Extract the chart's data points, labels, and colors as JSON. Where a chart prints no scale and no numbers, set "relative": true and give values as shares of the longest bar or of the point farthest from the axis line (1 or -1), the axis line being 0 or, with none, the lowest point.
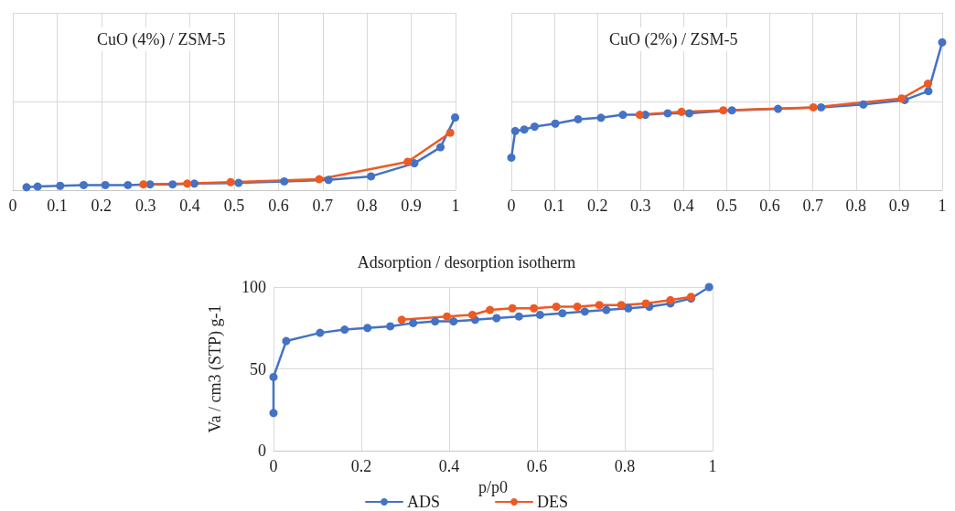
{
  "chart_data": [
    {
      "type": "line",
      "title": "CuO (4%) / ZSM-5",
      "relative": true,
      "tick_labels": "x",
      "grid": true,
      "marker": "circle",
      "line_style": "solid",
      "xlim": [
        0,
        1
      ],
      "xticks": [
        0,
        0.1,
        0.2,
        0.3,
        0.4,
        0.5,
        0.6,
        0.7,
        0.8,
        0.9,
        1
      ],
      "series": [
        {
          "color": "#4472c4",
          "x": [
            0.031,
            0.056,
            0.107,
            0.16,
            0.209,
            0.26,
            0.31,
            0.361,
            0.41,
            0.51,
            0.613,
            0.713,
            0.809,
            0.907,
            0.966,
            0.999
          ],
          "values": [
            0.04,
            0.05,
            0.06,
            0.07,
            0.07,
            0.07,
            0.08,
            0.08,
            0.09,
            0.1,
            0.12,
            0.14,
            0.19,
            0.37,
            0.59,
            1
          ]
        },
        {
          "color": "#ed5a23",
          "x": [
            0.295,
            0.394,
            0.492,
            0.692,
            0.892,
            0.988
          ],
          "values": [
            0.08,
            0.09,
            0.11,
            0.15,
            0.39,
            0.79
          ]
        }
      ]
    },
    {
      "type": "line",
      "title": "CuO (2%) / ZSM-5",
      "relative": true,
      "tick_labels": "x",
      "grid": true,
      "marker": "circle",
      "line_style": "solid",
      "xlim": [
        0,
        1
      ],
      "xticks": [
        0,
        0.1,
        0.2,
        0.3,
        0.4,
        0.5,
        0.6,
        0.7,
        0.8,
        0.9,
        1
      ],
      "series": [
        {
          "color": "#4472c4",
          "x": [
            0,
            0.009,
            0.03,
            0.054,
            0.102,
            0.155,
            0.208,
            0.259,
            0.311,
            0.363,
            0.413,
            0.512,
            0.619,
            0.719,
            0.817,
            0.913,
            0.968,
            1
          ],
          "values": [
            0.22,
            0.4,
            0.41,
            0.43,
            0.45,
            0.48,
            0.49,
            0.51,
            0.51,
            0.52,
            0.52,
            0.54,
            0.55,
            0.56,
            0.58,
            0.61,
            0.67,
            1
          ]
        },
        {
          "color": "#ed5a23",
          "x": [
            0.298,
            0.395,
            0.492,
            0.701,
            0.906,
            0.967
          ],
          "values": [
            0.51,
            0.53,
            0.54,
            0.56,
            0.62,
            0.72
          ]
        }
      ]
    },
    {
      "type": "line",
      "title": "Adsorption / desorption isotherm",
      "xlabel": "p/p0",
      "ylabel": "Va / cm3 (STP) g-1",
      "grid": true,
      "legend": "bottom",
      "marker": "circle",
      "line_style": "solid",
      "xlim": [
        0,
        1
      ],
      "xticks": [
        0,
        0.2,
        0.4,
        0.6,
        0.8,
        1
      ],
      "ylim": [
        0,
        100
      ],
      "yticks": [
        0,
        50,
        100
      ],
      "series": [
        {
          "name": "ADS",
          "color": "#4472c4",
          "x": [
            0,
            0,
            0.029,
            0.106,
            0.162,
            0.214,
            0.266,
            0.318,
            0.368,
            0.41,
            0.459,
            0.508,
            0.559,
            0.607,
            0.658,
            0.709,
            0.758,
            0.808,
            0.856,
            0.904,
            0.951,
            0.992
          ],
          "values": [
            23,
            45,
            67,
            72,
            74,
            75,
            76,
            78,
            79,
            79,
            80,
            81,
            82,
            83,
            84,
            85,
            86,
            87,
            88,
            90,
            93,
            100
          ]
        },
        {
          "name": "DES",
          "color": "#ed5a23",
          "x": [
            0.292,
            0.395,
            0.453,
            0.493,
            0.544,
            0.593,
            0.644,
            0.692,
            0.742,
            0.792,
            0.848,
            0.904,
            0.951
          ],
          "values": [
            80,
            82,
            83,
            86,
            87,
            87,
            88,
            88,
            89,
            89,
            90,
            92,
            94
          ]
        }
      ]
    }
  ]
}
